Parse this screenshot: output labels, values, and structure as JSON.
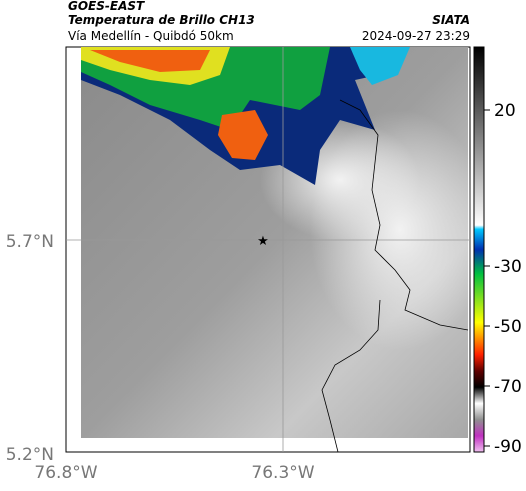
{
  "header": {
    "source": "GOES-EAST",
    "title": "Temperatura de Brillo CH13",
    "org": "SIATA",
    "route": "Vía Medellín - Quibdó 50km",
    "timestamp": "2024-09-27 23:29"
  },
  "map": {
    "lat_labels": [
      "5.7°N",
      "5.2°N"
    ],
    "lon_labels": [
      "76.8°W",
      "76.3°W"
    ]
  },
  "colorbar": {
    "ticks": [
      20,
      -30,
      -50,
      -70,
      -90
    ]
  }
}
